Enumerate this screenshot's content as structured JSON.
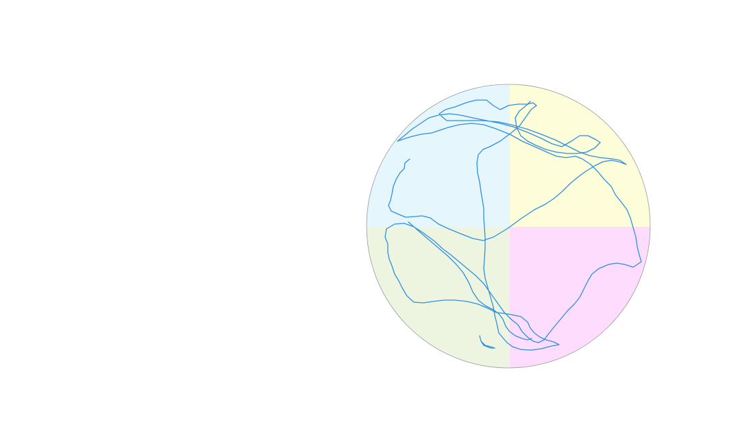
{
  "arena": {
    "shape": "circular pool divided into four quadrants",
    "quadrants": [
      {
        "name": "top-left",
        "color": "#e6f6fd"
      },
      {
        "name": "top-right",
        "color": "#fdfdd9"
      },
      {
        "name": "bottom-left",
        "color": "#edf5e1"
      },
      {
        "name": "bottom-right",
        "color": "#fddcfd"
      }
    ],
    "rim_color": "#9a9a9a"
  },
  "trajectory": {
    "color": "#2f8fe0"
  }
}
